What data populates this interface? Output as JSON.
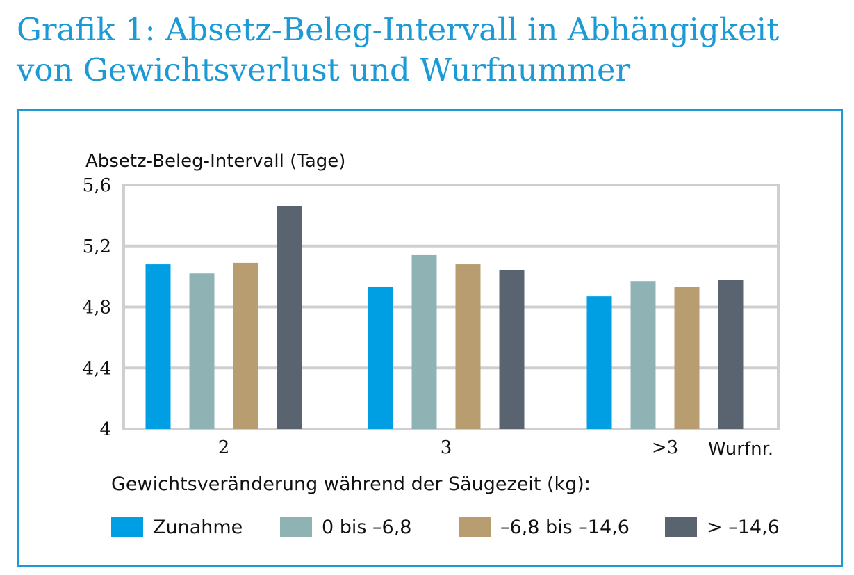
{
  "title": "Grafik 1: Absetz-Beleg-Intervall in Abhängigkeit von Gewichtsverlust und Wurfnummer",
  "chart_data": {
    "type": "bar",
    "ylabel": "Absetz-Beleg-Intervall (Tage)",
    "xlabel": "Wurfnr.",
    "ylim": [
      4,
      5.6
    ],
    "yticks": [
      4,
      4.4,
      4.8,
      5.2,
      5.6
    ],
    "ytick_labels": [
      "4",
      "4,4",
      "4,8",
      "5,2",
      "5,6"
    ],
    "categories": [
      "2",
      "3",
      ">3"
    ],
    "grid": true,
    "legend_title": "Gewichtsveränderung während der Säugezeit (kg):",
    "legend_position": "bottom",
    "series": [
      {
        "name": "Zunahme",
        "color": "#009fe3",
        "values": [
          5.08,
          4.93,
          4.87
        ]
      },
      {
        "name": "0 bis –6,8",
        "color": "#8fb3b5",
        "values": [
          5.02,
          5.14,
          4.97
        ]
      },
      {
        "name": "–6,8 bis –14,6",
        "color": "#b79d6f",
        "values": [
          5.09,
          5.08,
          4.93
        ]
      },
      {
        "name": "> –14,6",
        "color": "#5a6470",
        "values": [
          5.46,
          5.04,
          4.98
        ]
      }
    ]
  }
}
